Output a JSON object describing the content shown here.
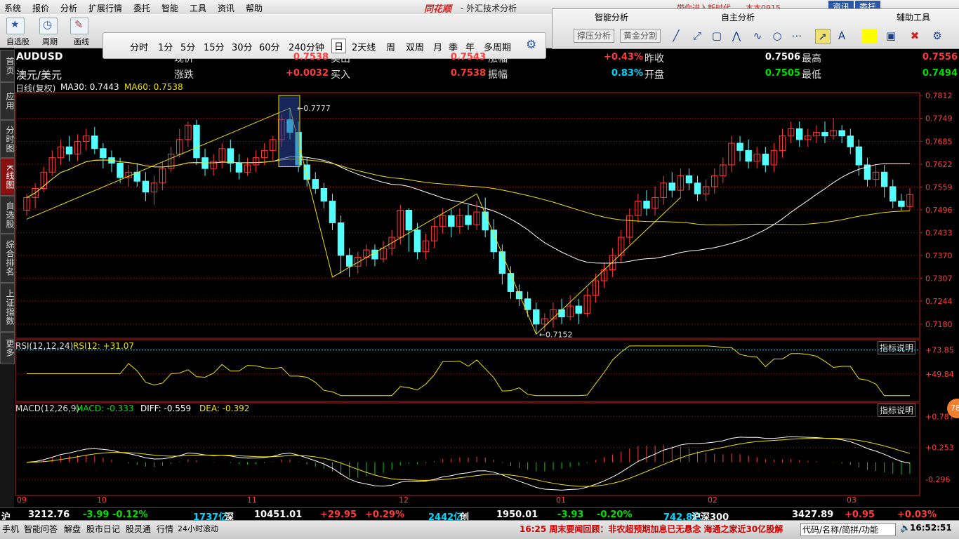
{
  "menu": [
    "系统",
    "报价",
    "分析",
    "扩展行情",
    "委托",
    "智能",
    "工具",
    "资讯",
    "帮助"
  ],
  "brand": "同花顺",
  "window_title": "- 外汇技术分析",
  "topright": {
    "notice": "带你进入新时代",
    "version": "本本0915",
    "info_btn": "资讯",
    "trade_btn": "委托"
  },
  "toolbar": {
    "self_select": "自选股",
    "period": "周期",
    "drawing": "画线",
    "periods": [
      "分时",
      "1分",
      "5分",
      "15分",
      "30分",
      "60分",
      "240分钟",
      "日",
      "2天线",
      "周",
      "双周",
      "月",
      "季",
      "年",
      "多周期"
    ],
    "selected_period": "日"
  },
  "panels": {
    "smart_analysis": "智能分析",
    "self_analysis": "自主分析",
    "aux_tools": "辅助工具",
    "pressure_btn": "撑压分析",
    "golden_btn": "黄金分割"
  },
  "left_tabs": [
    "首页",
    "应用",
    "分时图",
    "K线图",
    "自选股",
    "综合排名",
    "上证指数",
    "更多"
  ],
  "quote": {
    "symbol": "AUDUSD",
    "name": "澳元/美元",
    "rows": [
      [
        {
          "label": "现价",
          "value": "0.7538",
          "color": "red"
        },
        {
          "label": "卖出",
          "value": "0.7543",
          "color": "red"
        },
        {
          "label": "涨幅",
          "value": "+0.43%",
          "color": "red"
        },
        {
          "label": "昨收",
          "value": "0.7506",
          "color": "white"
        },
        {
          "label": "最高",
          "value": "0.7556",
          "color": "red"
        }
      ],
      [
        {
          "label": "涨跌",
          "value": "+0.0032",
          "color": "red"
        },
        {
          "label": "买入",
          "value": "0.7538",
          "color": "red"
        },
        {
          "label": "振幅",
          "value": "0.83%",
          "color": "cyan"
        },
        {
          "label": "开盘",
          "value": "0.7505",
          "color": "green"
        },
        {
          "label": "最低",
          "value": "0.7494",
          "color": "green"
        }
      ]
    ]
  },
  "indicators": {
    "main_title": "日线(复权)",
    "ma30": "MA30: 0.7443",
    "ma60": "MA60: 0.7538",
    "rsi_title": "RSI(12,12,24)",
    "rsi_value": "RSI12: +31.07",
    "macd_title": "MACD(12,26,9)",
    "macd_value": "MACD: -0.333",
    "diff_value": "DIFF: -0.559",
    "dea_value": "DEA: -0.392",
    "explain_btn": "指标说明"
  },
  "chart_data": {
    "type": "candlestick",
    "price_axis": [
      0.7812,
      0.7749,
      0.7685,
      0.7622,
      0.7559,
      0.7496,
      0.7433,
      0.737,
      0.7307,
      0.7244,
      0.718
    ],
    "rsi_axis": [
      "+73.85",
      "+49.84"
    ],
    "macd_axis": [
      "+0.787",
      "+0.253",
      "-0.296"
    ],
    "x_labels": [
      "09",
      "10",
      "11",
      "12",
      "01",
      "02",
      "03"
    ],
    "high_marker": "0.7777",
    "low_marker": "0.7152",
    "candles": [
      [
        0.7495,
        0.753,
        0.754,
        0.748
      ],
      [
        0.753,
        0.7555,
        0.757,
        0.75
      ],
      [
        0.7555,
        0.76,
        0.7615,
        0.7545
      ],
      [
        0.76,
        0.764,
        0.766,
        0.759
      ],
      [
        0.764,
        0.767,
        0.769,
        0.762
      ],
      [
        0.767,
        0.765,
        0.77,
        0.763
      ],
      [
        0.765,
        0.7685,
        0.7705,
        0.763
      ],
      [
        0.7685,
        0.77,
        0.772,
        0.766
      ],
      [
        0.77,
        0.7665,
        0.7725,
        0.765
      ],
      [
        0.7665,
        0.764,
        0.768,
        0.761
      ],
      [
        0.764,
        0.7625,
        0.766,
        0.76
      ],
      [
        0.7625,
        0.7585,
        0.764,
        0.757
      ],
      [
        0.7585,
        0.76,
        0.762,
        0.756
      ],
      [
        0.76,
        0.7575,
        0.7625,
        0.756
      ],
      [
        0.7575,
        0.7545,
        0.76,
        0.752
      ],
      [
        0.7545,
        0.757,
        0.759,
        0.751
      ],
      [
        0.757,
        0.761,
        0.763,
        0.755
      ],
      [
        0.761,
        0.765,
        0.767,
        0.76
      ],
      [
        0.765,
        0.769,
        0.772,
        0.764
      ],
      [
        0.769,
        0.773,
        0.774,
        0.767
      ],
      [
        0.773,
        0.764,
        0.7745,
        0.762
      ],
      [
        0.764,
        0.761,
        0.7665,
        0.759
      ],
      [
        0.761,
        0.763,
        0.765,
        0.759
      ],
      [
        0.763,
        0.7665,
        0.768,
        0.761
      ],
      [
        0.7665,
        0.7625,
        0.769,
        0.76
      ],
      [
        0.7625,
        0.76,
        0.765,
        0.758
      ],
      [
        0.76,
        0.762,
        0.764,
        0.759
      ],
      [
        0.762,
        0.764,
        0.766,
        0.76
      ],
      [
        0.764,
        0.766,
        0.768,
        0.762
      ],
      [
        0.766,
        0.769,
        0.77,
        0.763
      ],
      [
        0.769,
        0.7745,
        0.776,
        0.767
      ],
      [
        0.7745,
        0.771,
        0.7777,
        0.769
      ],
      [
        0.771,
        0.762,
        0.774,
        0.76
      ],
      [
        0.762,
        0.758,
        0.764,
        0.756
      ],
      [
        0.758,
        0.7555,
        0.76,
        0.754
      ],
      [
        0.7555,
        0.752,
        0.757,
        0.75
      ],
      [
        0.752,
        0.746,
        0.754,
        0.744
      ],
      [
        0.746,
        0.737,
        0.748,
        0.732
      ],
      [
        0.737,
        0.734,
        0.739,
        0.731
      ],
      [
        0.734,
        0.7365,
        0.738,
        0.732
      ],
      [
        0.7365,
        0.7385,
        0.74,
        0.734
      ],
      [
        0.7385,
        0.736,
        0.74,
        0.734
      ],
      [
        0.736,
        0.739,
        0.741,
        0.735
      ],
      [
        0.739,
        0.742,
        0.744,
        0.737
      ],
      [
        0.742,
        0.7495,
        0.751,
        0.74
      ],
      [
        0.7495,
        0.744,
        0.75,
        0.738
      ],
      [
        0.744,
        0.738,
        0.746,
        0.736
      ],
      [
        0.738,
        0.741,
        0.743,
        0.736
      ],
      [
        0.741,
        0.745,
        0.747,
        0.739
      ],
      [
        0.745,
        0.748,
        0.75,
        0.743
      ],
      [
        0.748,
        0.745,
        0.75,
        0.742
      ],
      [
        0.745,
        0.748,
        0.75,
        0.743
      ],
      [
        0.748,
        0.7455,
        0.751,
        0.744
      ],
      [
        0.7455,
        0.749,
        0.752,
        0.744
      ],
      [
        0.749,
        0.744,
        0.753,
        0.742
      ],
      [
        0.744,
        0.738,
        0.747,
        0.736
      ],
      [
        0.738,
        0.732,
        0.74,
        0.729
      ],
      [
        0.732,
        0.727,
        0.734,
        0.725
      ],
      [
        0.727,
        0.725,
        0.729,
        0.723
      ],
      [
        0.725,
        0.722,
        0.727,
        0.72
      ],
      [
        0.722,
        0.718,
        0.724,
        0.7152
      ],
      [
        0.718,
        0.7195,
        0.721,
        0.716
      ],
      [
        0.7195,
        0.722,
        0.724,
        0.717
      ],
      [
        0.722,
        0.72,
        0.725,
        0.718
      ],
      [
        0.72,
        0.723,
        0.726,
        0.719
      ],
      [
        0.723,
        0.721,
        0.725,
        0.718
      ],
      [
        0.721,
        0.726,
        0.728,
        0.72
      ],
      [
        0.726,
        0.73,
        0.732,
        0.724
      ],
      [
        0.73,
        0.733,
        0.735,
        0.728
      ],
      [
        0.733,
        0.737,
        0.739,
        0.731
      ],
      [
        0.737,
        0.742,
        0.744,
        0.735
      ],
      [
        0.742,
        0.748,
        0.75,
        0.74
      ],
      [
        0.748,
        0.752,
        0.754,
        0.746
      ],
      [
        0.752,
        0.75,
        0.755,
        0.748
      ],
      [
        0.75,
        0.753,
        0.756,
        0.748
      ],
      [
        0.753,
        0.757,
        0.759,
        0.751
      ],
      [
        0.757,
        0.755,
        0.76,
        0.753
      ],
      [
        0.755,
        0.759,
        0.761,
        0.753
      ],
      [
        0.759,
        0.757,
        0.761,
        0.755
      ],
      [
        0.757,
        0.754,
        0.759,
        0.752
      ],
      [
        0.754,
        0.756,
        0.758,
        0.752
      ],
      [
        0.756,
        0.759,
        0.761,
        0.754
      ],
      [
        0.759,
        0.762,
        0.764,
        0.757
      ],
      [
        0.762,
        0.768,
        0.77,
        0.76
      ],
      [
        0.768,
        0.766,
        0.77,
        0.763
      ],
      [
        0.766,
        0.763,
        0.769,
        0.761
      ],
      [
        0.763,
        0.765,
        0.767,
        0.761
      ],
      [
        0.765,
        0.762,
        0.767,
        0.76
      ],
      [
        0.762,
        0.766,
        0.768,
        0.76
      ],
      [
        0.766,
        0.77,
        0.772,
        0.764
      ],
      [
        0.77,
        0.772,
        0.774,
        0.768
      ],
      [
        0.772,
        0.769,
        0.774,
        0.767
      ],
      [
        0.769,
        0.77,
        0.772,
        0.767
      ],
      [
        0.77,
        0.771,
        0.773,
        0.768
      ],
      [
        0.771,
        0.77,
        0.774,
        0.768
      ],
      [
        0.77,
        0.7715,
        0.775,
        0.769
      ],
      [
        0.7715,
        0.77,
        0.773,
        0.768
      ],
      [
        0.77,
        0.767,
        0.772,
        0.765
      ],
      [
        0.767,
        0.762,
        0.769,
        0.759
      ],
      [
        0.762,
        0.758,
        0.764,
        0.756
      ],
      [
        0.758,
        0.76,
        0.762,
        0.756
      ],
      [
        0.76,
        0.756,
        0.762,
        0.753
      ],
      [
        0.756,
        0.752,
        0.758,
        0.75
      ],
      [
        0.752,
        0.7505,
        0.754,
        0.7494
      ],
      [
        0.7505,
        0.7538,
        0.7556,
        0.7494
      ]
    ]
  },
  "status_bar": {
    "items": [
      {
        "t": "沪",
        "c": "white"
      },
      {
        "t": "3212.76",
        "c": "white"
      },
      {
        "t": "-3.99",
        "c": "green"
      },
      {
        "t": "-0.12%",
        "c": "green"
      },
      {
        "t": "1737亿",
        "c": "cyan"
      },
      {
        "t": "深",
        "c": "white"
      },
      {
        "t": "10451.01",
        "c": "white"
      },
      {
        "t": "+29.95",
        "c": "red"
      },
      {
        "t": "+0.29%",
        "c": "red"
      },
      {
        "t": "2442亿",
        "c": "cyan"
      },
      {
        "t": "创",
        "c": "white"
      },
      {
        "t": "1950.01",
        "c": "white"
      },
      {
        "t": "-3.93",
        "c": "green"
      },
      {
        "t": "-0.20%",
        "c": "green"
      },
      {
        "t": "742.8亿",
        "c": "cyan"
      },
      {
        "t": "沪深300",
        "c": "white"
      },
      {
        "t": "3427.89",
        "c": "white"
      },
      {
        "t": "+0.95",
        "c": "red"
      },
      {
        "t": "+0.03%",
        "c": "red"
      }
    ],
    "bottom": [
      "手机",
      "智能问答",
      "解盘",
      "股市日记",
      "股灵通",
      "行情",
      "24小时滚动"
    ],
    "news": "16:25 周末要闻回顾：非农超预期加息已无悬念 海通之家近30亿股解",
    "search": "代码/名称/简拼/功能",
    "time": "16:52:51",
    "badge": "78"
  }
}
